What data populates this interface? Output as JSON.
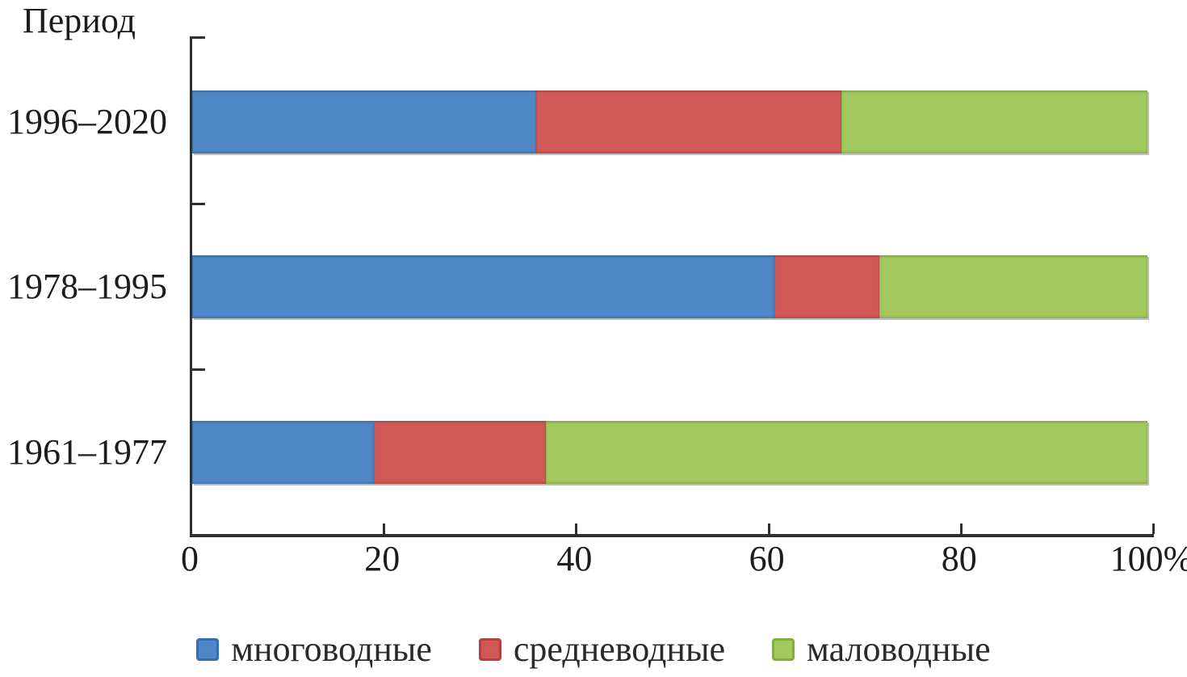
{
  "chart_data": {
    "type": "bar",
    "variant": "horizontal-stacked",
    "ylabel": "Период",
    "categories": [
      "1996–2020",
      "1978–1995",
      "1961–1977"
    ],
    "series": [
      {
        "name": "многоводные",
        "color": "#4e86c6",
        "swatch_border": "#2f6db4",
        "values": [
          36,
          61,
          19
        ]
      },
      {
        "name": "средневодные",
        "color": "#d15955",
        "swatch_border": "#b5403f",
        "values": [
          32,
          11,
          18
        ]
      },
      {
        "name": "маловодные",
        "color": "#a2c85e",
        "swatch_border": "#81ae41",
        "values": [
          32,
          28,
          63
        ]
      }
    ],
    "x_ticks": [
      {
        "label": "0",
        "value": 0
      },
      {
        "label": "20",
        "value": 20
      },
      {
        "label": "40",
        "value": 40
      },
      {
        "label": "60",
        "value": 60
      },
      {
        "label": "80",
        "value": 80
      },
      {
        "label": "100%",
        "value": 100
      }
    ],
    "xlim": [
      0,
      100
    ],
    "grid": "off",
    "legend_position": "bottom",
    "axis_color": "#2f2f2f",
    "text_color": "#1c1c1c",
    "background_color": "#ffffff"
  }
}
